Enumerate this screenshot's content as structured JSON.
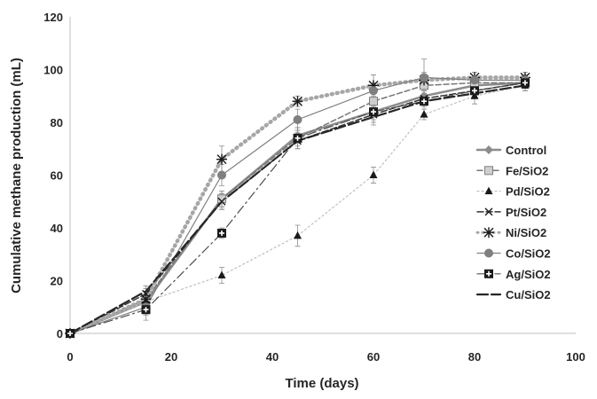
{
  "chart_data": {
    "type": "line",
    "title": "",
    "xlabel": "Time (days)",
    "ylabel": "Cumulative methane production (mL)",
    "xlim": [
      0,
      100
    ],
    "ylim": [
      0,
      120
    ],
    "xticks": [
      0,
      20,
      40,
      60,
      80,
      100
    ],
    "yticks": [
      0,
      20,
      40,
      60,
      80,
      100,
      120
    ],
    "grid": false,
    "legend": "right",
    "x": [
      0,
      15,
      30,
      45,
      60,
      70,
      80,
      90
    ],
    "series": [
      {
        "name": "Control",
        "values": [
          0,
          12,
          51,
          75,
          84,
          90,
          94,
          95
        ],
        "color": "#8c8c8c",
        "marker": "diamond",
        "dash": "",
        "width": 2.5,
        "errors": [
          0,
          2,
          3,
          3,
          2,
          2,
          2,
          2
        ]
      },
      {
        "name": "Fe/SiO2",
        "values": [
          0,
          13,
          51,
          74,
          88,
          94,
          95,
          95
        ],
        "color": "#777777",
        "marker": "square",
        "dash": "6,3",
        "width": 1.5,
        "errors": [
          0,
          3,
          3,
          3,
          3,
          2,
          2,
          2
        ]
      },
      {
        "name": "Pd/SiO2",
        "values": [
          0,
          12,
          22,
          37,
          60,
          83,
          90,
          94
        ],
        "color": "#bfbfbf",
        "marker": "triangle",
        "dash": "2,3",
        "width": 1.2,
        "errors": [
          0,
          3,
          3,
          4,
          3,
          2,
          3,
          2
        ]
      },
      {
        "name": "Pt/SiO2",
        "values": [
          0,
          15,
          50,
          73,
          83,
          89,
          92,
          95
        ],
        "color": "#333333",
        "marker": "x",
        "dash": "7,3",
        "width": 1.5,
        "errors": [
          0,
          2,
          3,
          3,
          3,
          2,
          2,
          2
        ]
      },
      {
        "name": "Ni/SiO2",
        "values": [
          0,
          13,
          66,
          88,
          94,
          96,
          97,
          97
        ],
        "color": "#a6a6a6",
        "marker": "star",
        "dash": "1,5",
        "width": 4.5,
        "errors": [
          0,
          3,
          5,
          2,
          4,
          3,
          2,
          2
        ]
      },
      {
        "name": "Co/SiO2",
        "values": [
          0,
          10,
          60,
          81,
          92,
          97,
          96,
          96
        ],
        "color": "#7f7f7f",
        "marker": "circle",
        "dash": "",
        "width": 1.2,
        "errors": [
          0,
          3,
          4,
          4,
          3,
          7,
          3,
          2
        ]
      },
      {
        "name": "Ag/SiO2",
        "values": [
          0,
          9,
          38,
          74,
          84,
          88,
          92,
          95
        ],
        "color": "#4d4d4d",
        "marker": "plussquare",
        "dash": "10,4,2,4",
        "width": 1.2,
        "errors": [
          0,
          4,
          2,
          4,
          3,
          3,
          3,
          2
        ]
      },
      {
        "name": "Cu/SiO2",
        "values": [
          0,
          16,
          50,
          73,
          82,
          88,
          91,
          94
        ],
        "color": "#262626",
        "marker": "none",
        "dash": "12,4",
        "width": 2.2,
        "errors": [
          0,
          2,
          3,
          3,
          3,
          2,
          2,
          2
        ]
      }
    ]
  }
}
